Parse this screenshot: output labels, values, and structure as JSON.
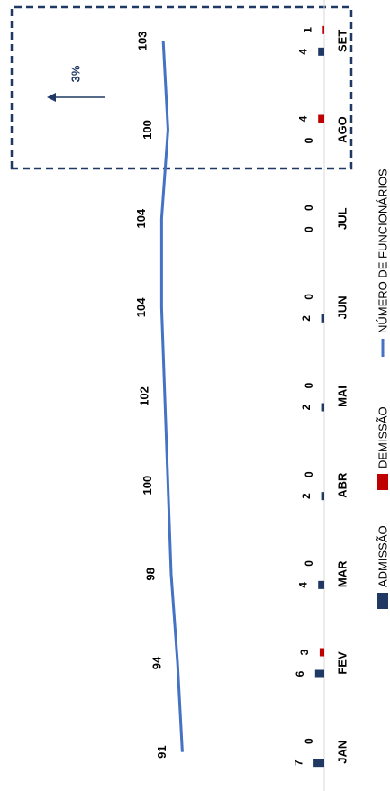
{
  "chart_data": {
    "type": "bar-line",
    "categories": [
      "JAN",
      "FEV",
      "MAR",
      "ABR",
      "MAI",
      "JUN",
      "JUL",
      "AGO",
      "SET"
    ],
    "series": [
      {
        "name": "ADMISSÃO",
        "color": "#1f3864",
        "type": "bar",
        "values": [
          7,
          6,
          4,
          2,
          2,
          2,
          0,
          0,
          4
        ]
      },
      {
        "name": "DEMISSÃO",
        "color": "#c00000",
        "type": "bar",
        "values": [
          0,
          3,
          0,
          0,
          0,
          0,
          0,
          4,
          1
        ]
      },
      {
        "name": "NÚMERO DE FUNCIONÁRIOS",
        "color": "#4472c4",
        "type": "line",
        "axis": "y2",
        "values": [
          91,
          94,
          98,
          100,
          102,
          104,
          104,
          100,
          103
        ]
      }
    ],
    "ylim": [
      0,
      200
    ],
    "y2lim": [
      2,
      194
    ],
    "annotation": "3%",
    "legend": "bottom"
  }
}
